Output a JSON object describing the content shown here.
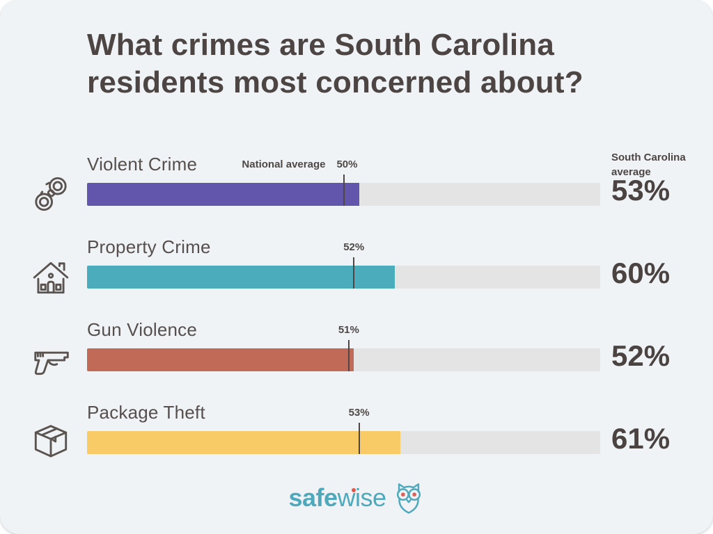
{
  "title": "What crimes are South Carolina residents most concerned about?",
  "right_header": "South Carolina average",
  "national_average_label": "National average",
  "footer": {
    "brand_bold": "safe",
    "brand_rest": "wise",
    "owl": "owl-icon"
  },
  "colors": {
    "card_background": "#eff3f6",
    "track": "#e5e4e4",
    "text_dark": "#4d4543",
    "brand_teal": "#4fa9bd",
    "brand_red": "#e2574c"
  },
  "chart_data": {
    "type": "bar",
    "title": "What crimes are South Carolina residents most concerned about?",
    "xlabel": "",
    "ylabel": "",
    "unit": "%",
    "xlim": [
      0,
      100
    ],
    "legend": "none",
    "grid": false,
    "rows": [
      {
        "category": "Violent Crime",
        "icon": "handcuffs-icon",
        "color": "#6156ac",
        "south_carolina_average": 53,
        "national_average": 50,
        "show_national_label": true
      },
      {
        "category": "Property Crime",
        "icon": "house-icon",
        "color": "#4badbb",
        "south_carolina_average": 60,
        "national_average": 52,
        "show_national_label": false
      },
      {
        "category": "Gun Violence",
        "icon": "pistol-icon",
        "color": "#c16a57",
        "south_carolina_average": 52,
        "national_average": 51,
        "show_national_label": false
      },
      {
        "category": "Package Theft",
        "icon": "package-icon",
        "color": "#f9cb67",
        "south_carolina_average": 61,
        "national_average": 53,
        "show_national_label": false
      }
    ]
  }
}
